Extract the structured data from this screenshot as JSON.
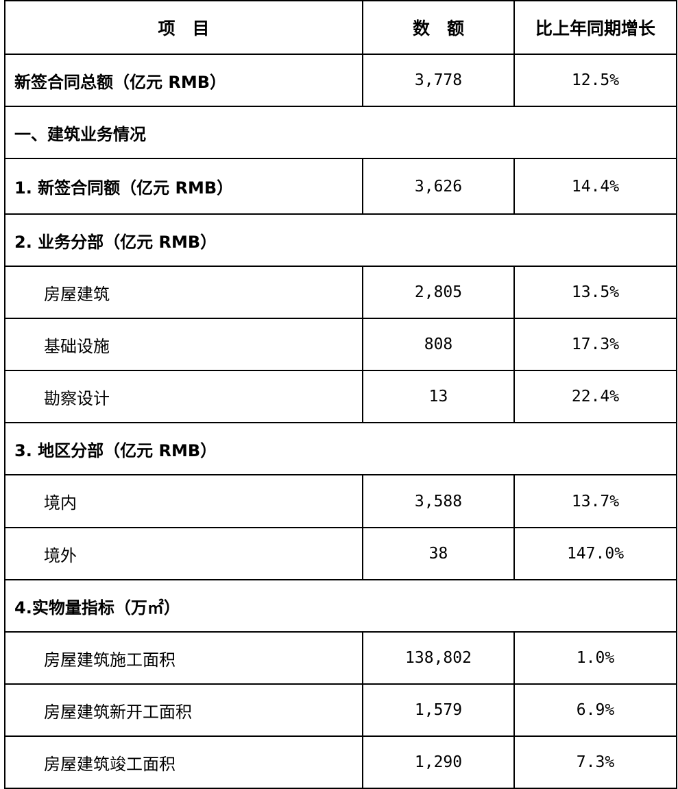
{
  "header": {
    "item": "项　目",
    "amount": "数　额",
    "growth": "比上年同期增长"
  },
  "rows": [
    {
      "type": "total",
      "label": "新签合同总额（亿元 RMB）",
      "amount": "3,778",
      "growth": "12.5%"
    },
    {
      "type": "section",
      "label": "一、建筑业务情况"
    },
    {
      "type": "bold",
      "label": "1. 新签合同额（亿元 RMB）",
      "amount": "3,626",
      "growth": "14.4%"
    },
    {
      "type": "section",
      "label": "2. 业务分部（亿元 RMB）"
    },
    {
      "type": "sub",
      "label": "房屋建筑",
      "amount": "2,805",
      "growth": "13.5%"
    },
    {
      "type": "sub",
      "label": "基础设施",
      "amount": "808",
      "growth": "17.3%"
    },
    {
      "type": "sub",
      "label": "勘察设计",
      "amount": "13",
      "growth": "22.4%"
    },
    {
      "type": "section",
      "label": "3. 地区分部（亿元 RMB）"
    },
    {
      "type": "sub",
      "label": "境内",
      "amount": "3,588",
      "growth": "13.7%"
    },
    {
      "type": "sub",
      "label": "境外",
      "amount": "38",
      "growth": "147.0%"
    },
    {
      "type": "section",
      "label": "4.实物量指标（万㎡）"
    },
    {
      "type": "sub",
      "label": "房屋建筑施工面积",
      "amount": "138,802",
      "growth": "1.0%"
    },
    {
      "type": "sub",
      "label": "房屋建筑新开工面积",
      "amount": "1,579",
      "growth": "6.9%"
    },
    {
      "type": "sub",
      "label": "房屋建筑竣工面积",
      "amount": "1,290",
      "growth": "7.3%"
    }
  ]
}
